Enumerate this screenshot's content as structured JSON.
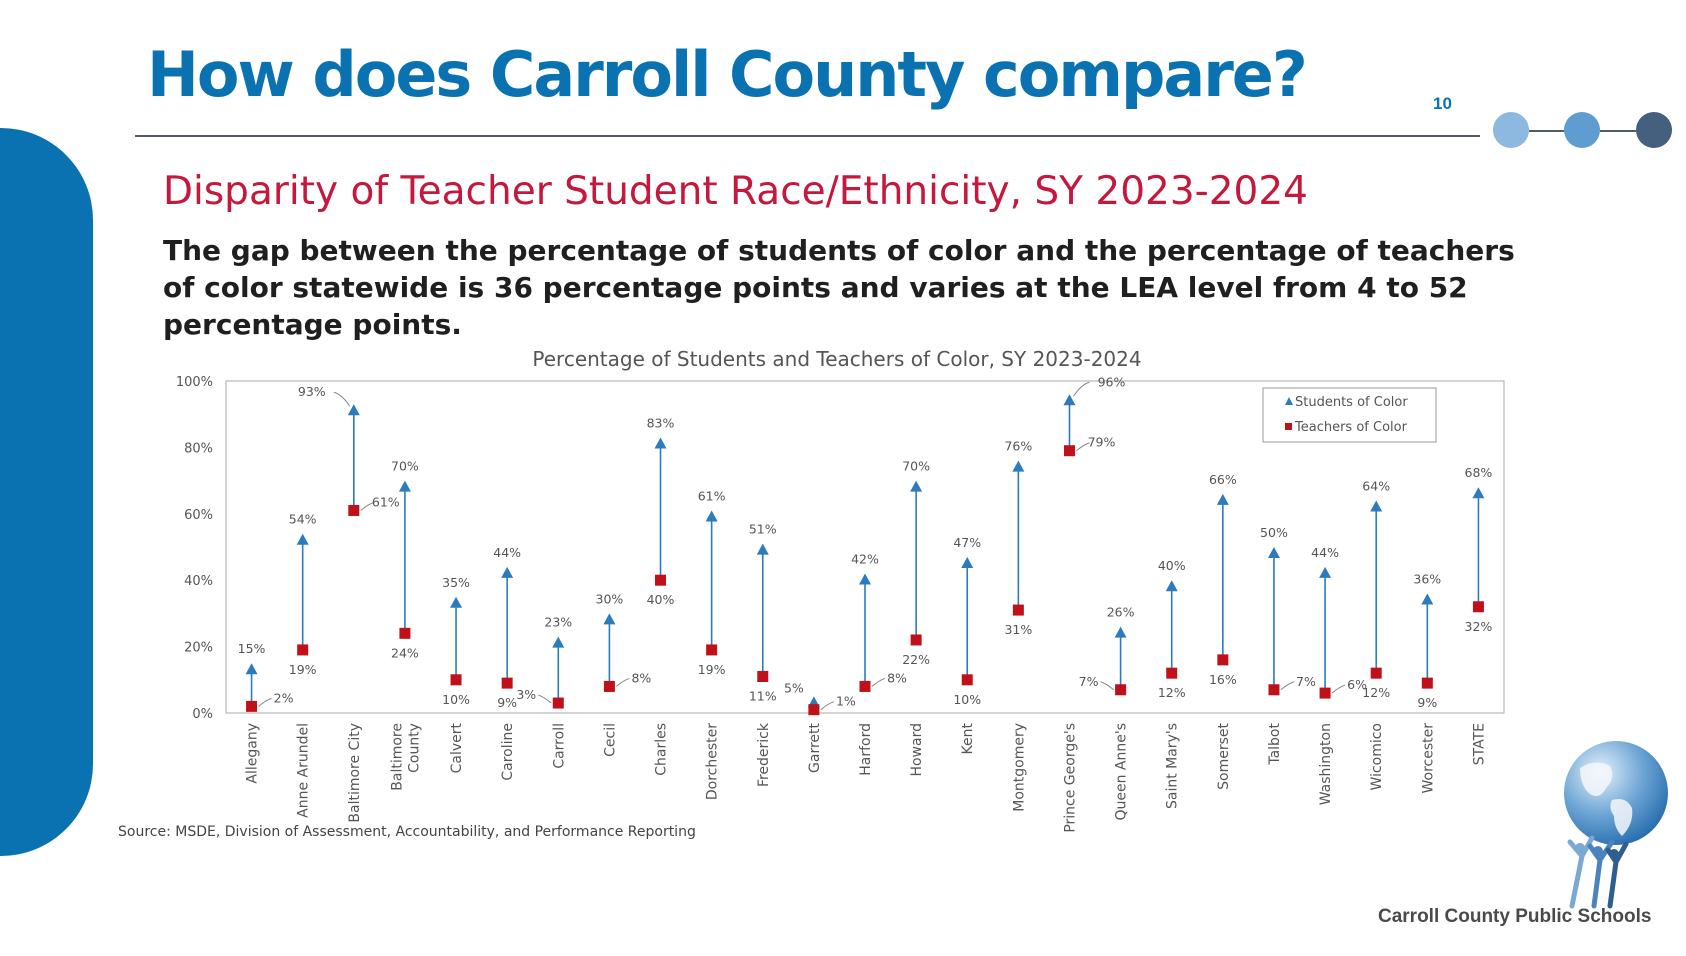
{
  "slide": {
    "title": "How does Carroll County compare?",
    "page_number": "10",
    "logo_caption": "Carroll County Public Schools"
  },
  "colors": {
    "brand_blue": "#0a72b0",
    "heading_red": "#c4183c",
    "students_marker": "#2b7bbd",
    "teachers_marker": "#c0101a",
    "dots": [
      "#8db8df",
      "#5f9ccf",
      "#44607e"
    ]
  },
  "icons": [
    "globe-people-logo-icon"
  ],
  "chart_data": {
    "type": "scatter",
    "title": "Percentage of Students and Teachers of Color, SY 2023-2024",
    "heading": "Disparity of Teacher Student Race/Ethnicity, SY 2023-2024",
    "summary": "The gap between the percentage of students of color and the percentage of teachers of color statewide is 36 percentage points and varies at the LEA level from 4 to 52 percentage points.",
    "source": "Source: MSDE, Division of Assessment, Accountability, and Performance Reporting",
    "ylim": [
      0,
      100
    ],
    "y_ticks": [
      "0%",
      "20%",
      "40%",
      "60%",
      "80%",
      "100%"
    ],
    "legend_position": "top-right",
    "categories": [
      "Allegany",
      "Anne Arundel",
      "Baltimore City",
      "Baltimore County",
      "Calvert",
      "Caroline",
      "Carroll",
      "Cecil",
      "Charles",
      "Dorchester",
      "Frederick",
      "Garrett",
      "Harford",
      "Howard",
      "Kent",
      "Montgomery",
      "Prince George's",
      "Queen Anne's",
      "Saint Mary's",
      "Somerset",
      "Talbot",
      "Washington",
      "Wicomico",
      "Worcester",
      "STATE"
    ],
    "series": [
      {
        "name": "Students of Color",
        "marker": "triangle",
        "values": [
          15,
          54,
          93,
          70,
          35,
          44,
          23,
          30,
          83,
          61,
          51,
          5,
          42,
          70,
          47,
          76,
          96,
          26,
          40,
          66,
          50,
          44,
          64,
          36,
          68
        ],
        "labels": [
          "15%",
          "54%",
          "93%",
          "70%",
          "35%",
          "44%",
          "23%",
          "30%",
          "83%",
          "61%",
          "51%",
          "5%",
          "42%",
          "70%",
          "47%",
          "76%",
          "96%",
          "26%",
          "40%",
          "66%",
          "50%",
          "44%",
          "64%",
          "36%",
          "68%"
        ]
      },
      {
        "name": "Teachers of Color",
        "marker": "square",
        "values": [
          2,
          19,
          61,
          24,
          10,
          9,
          3,
          8,
          40,
          19,
          11,
          1,
          8,
          22,
          10,
          31,
          79,
          7,
          12,
          16,
          7,
          6,
          12,
          9,
          32
        ],
        "labels": [
          "2%",
          "19%",
          "61%",
          "24%",
          "10%",
          "9%",
          "3%",
          "8%",
          "40%",
          "19%",
          "11%",
          "1%",
          "8%",
          "22%",
          "10%",
          "31%",
          "79%",
          "7%",
          "12%",
          "16%",
          "7%",
          "6%",
          "12%",
          "9%",
          "32%"
        ]
      }
    ]
  }
}
